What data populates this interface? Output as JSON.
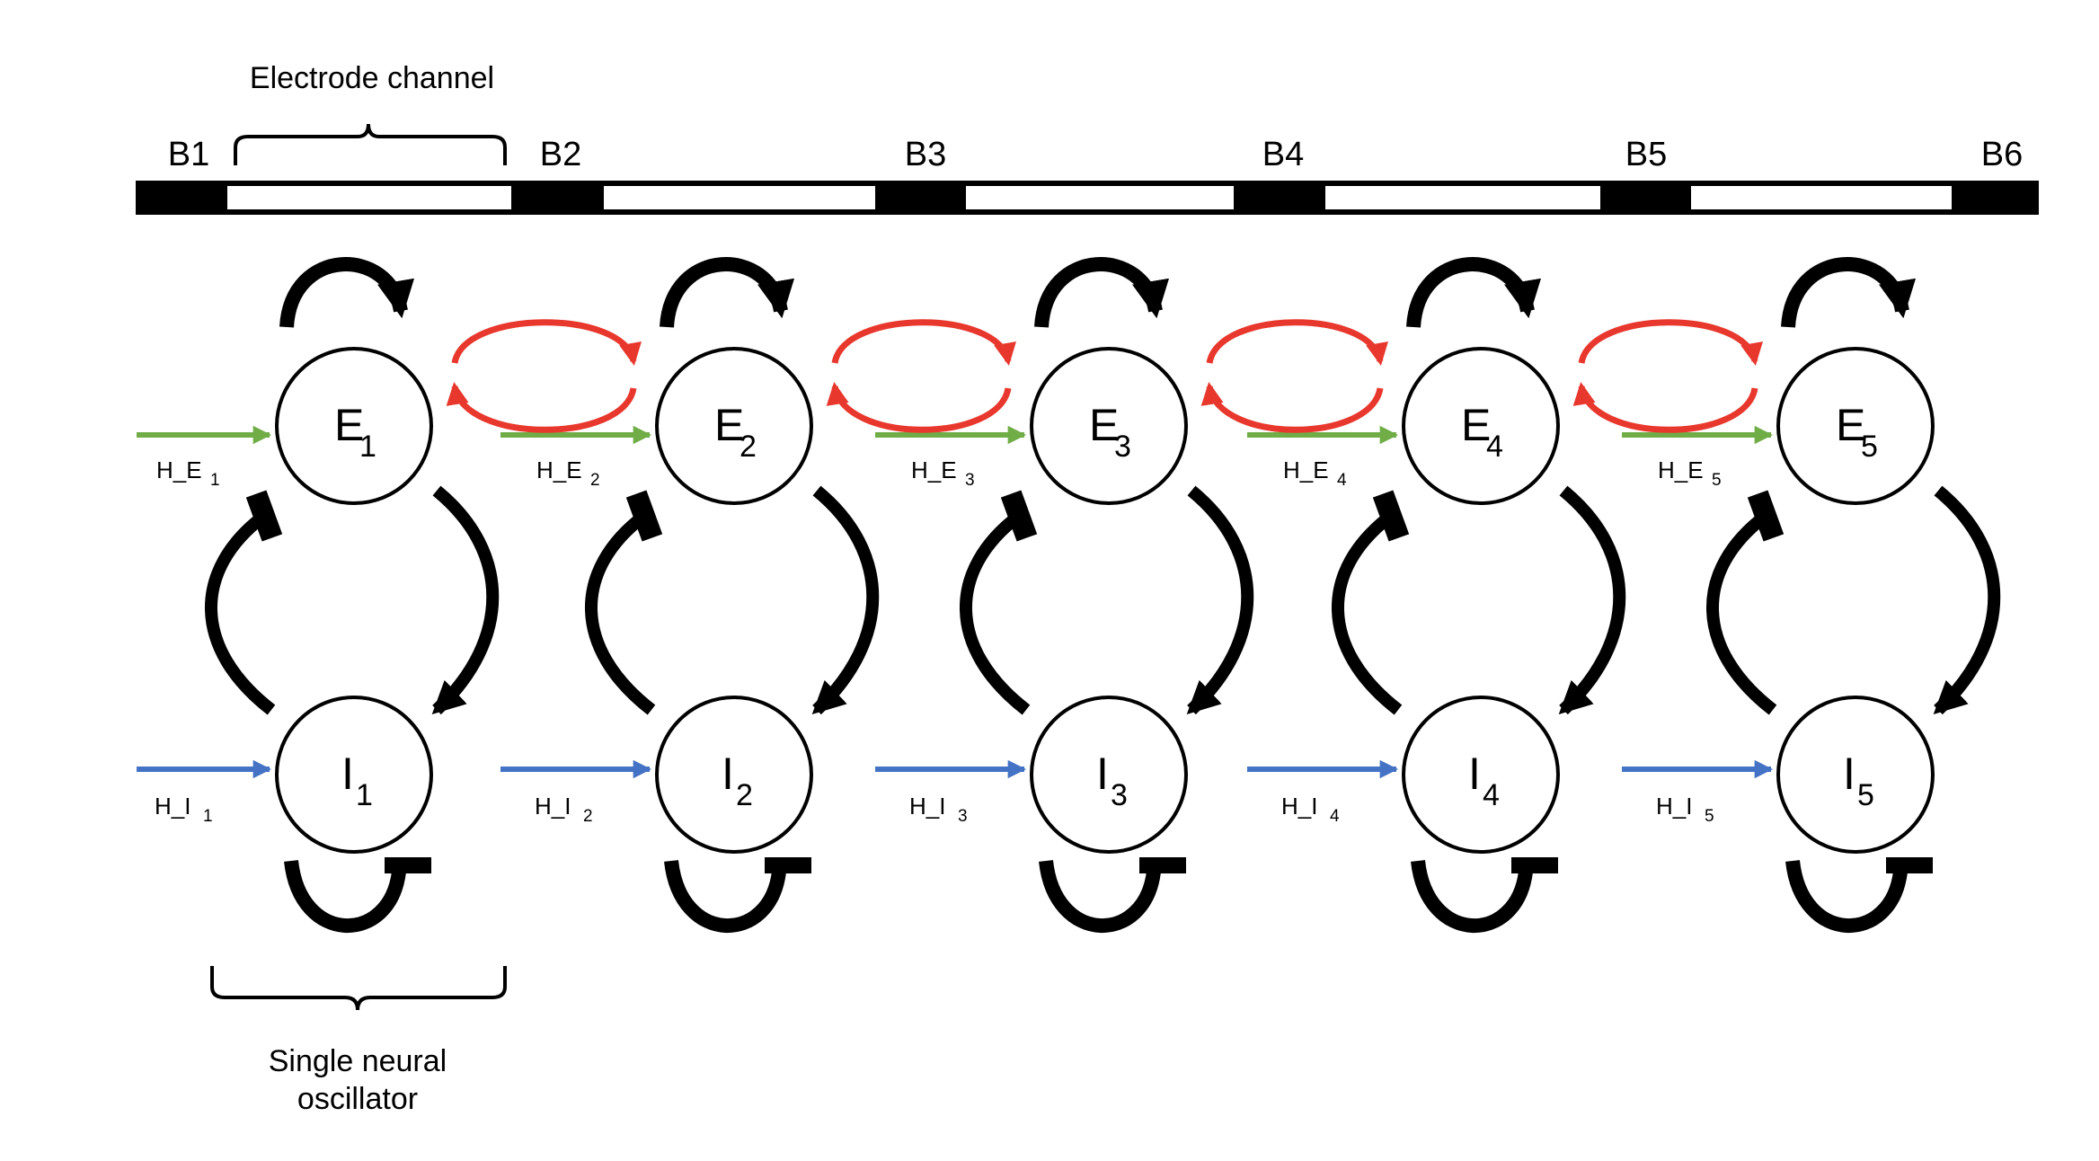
{
  "labels": {
    "electrode_channel": "Electrode channel",
    "oscillator_line1": "Single neural",
    "oscillator_line2": "oscillator"
  },
  "bands": [
    "B1",
    "B2",
    "B3",
    "B4",
    "B5",
    "B6"
  ],
  "oscillators": [
    {
      "e_letter": "E",
      "i_letter": "I",
      "index": "1",
      "he_prefix": "H_E",
      "hi_prefix": "H_I"
    },
    {
      "e_letter": "E",
      "i_letter": "I",
      "index": "2",
      "he_prefix": "H_E",
      "hi_prefix": "H_I"
    },
    {
      "e_letter": "E",
      "i_letter": "I",
      "index": "3",
      "he_prefix": "H_E",
      "hi_prefix": "H_I"
    },
    {
      "e_letter": "E",
      "i_letter": "I",
      "index": "4",
      "he_prefix": "H_E",
      "hi_prefix": "H_I"
    },
    {
      "e_letter": "E",
      "i_letter": "I",
      "index": "5",
      "he_prefix": "H_E",
      "hi_prefix": "H_I"
    }
  ],
  "colors": {
    "excitatory_input": "#70ad47",
    "inhibitory_input": "#4472c4",
    "inter_oscillator_coupling": "#e8382e",
    "connection": "#000000"
  },
  "legend_icons": {
    "self_excitation": "curved-arrow-icon",
    "self_inhibition": "curved-bar-icon",
    "coupling": "double-curved-arrow-icon"
  }
}
